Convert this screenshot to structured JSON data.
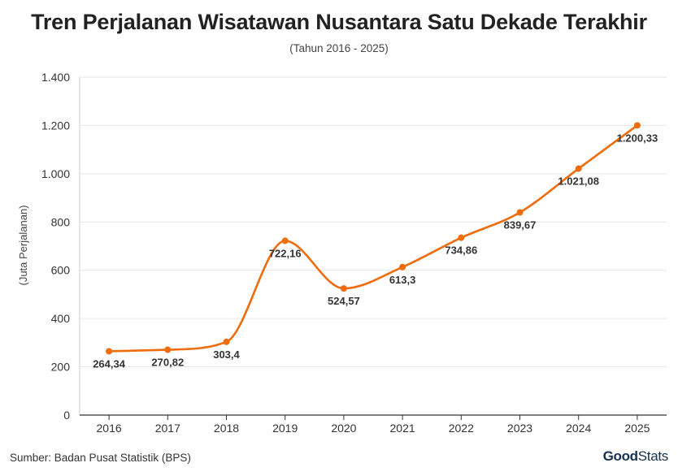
{
  "header": {
    "title": "Tren Perjalanan Wisatawan Nusantara Satu Dekade Terakhir",
    "subtitle": "(Tahun 2016 - 2025)"
  },
  "footer": {
    "source": "Sumber: Badan Pusat Statistik (BPS)",
    "logo_part1": "Good",
    "logo_part2": "Stats"
  },
  "colors": {
    "line": "#ee6c0b",
    "grid": "#e6e6e6",
    "axis": "#333333"
  },
  "chart_data": {
    "type": "line",
    "title": "Tren Perjalanan Wisatawan Nusantara Satu Dekade Terakhir",
    "subtitle": "(Tahun 2016 - 2025)",
    "xlabel": "",
    "ylabel": "(Juta Perjalanan)",
    "categories": [
      "2016",
      "2017",
      "2018",
      "2019",
      "2020",
      "2021",
      "2022",
      "2023",
      "2024",
      "2025"
    ],
    "values": [
      264.34,
      270.82,
      303.4,
      722.16,
      524.57,
      613.3,
      734.86,
      839.67,
      1021.08,
      1200.33
    ],
    "data_labels": [
      "264,34",
      "270,82",
      "303,4",
      "722,16",
      "524,57",
      "613,3",
      "734,86",
      "839,67",
      "1.021,08",
      "1.200,33"
    ],
    "ylim": [
      0,
      1400
    ],
    "yticks": [
      0,
      200,
      400,
      600,
      800,
      1000,
      1200,
      1400
    ],
    "ytick_labels": [
      "0",
      "200",
      "400",
      "600",
      "800",
      "1.000",
      "1.200",
      "1.400"
    ],
    "grid": true,
    "legend": "none"
  }
}
